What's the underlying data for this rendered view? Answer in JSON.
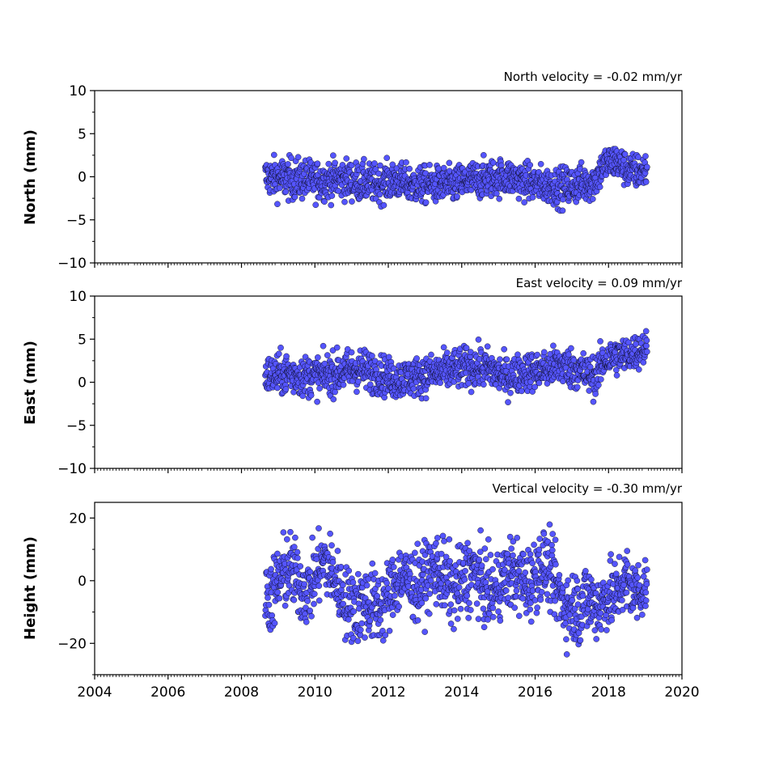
{
  "chart_data": [
    {
      "type": "scatter",
      "component": "north",
      "ylabel": "North (mm)",
      "velocity_label": "North velocity = -0.02 mm/yr",
      "xlim": [
        2004,
        2020
      ],
      "ylim": [
        -10,
        10
      ],
      "yticks": [
        10,
        5,
        0,
        -5,
        -10
      ],
      "yticks_labels": [
        "10",
        "5",
        "0",
        "−5",
        "−10"
      ],
      "x_start": 2008.65,
      "x_end": 2019.05,
      "series": [
        {
          "x": [
            2008.7,
            2009.2,
            2009.7,
            2010.2,
            2010.7,
            2011.2,
            2011.7,
            2012.2,
            2012.7,
            2013.2,
            2013.7,
            2014.2,
            2014.7,
            2015.2,
            2015.7,
            2016.2,
            2016.7,
            2017.2,
            2017.6,
            2017.9,
            2018.2,
            2018.5,
            2018.8,
            2019.0
          ],
          "y": [
            0.0,
            -0.2,
            -0.3,
            -0.5,
            -0.2,
            -0.6,
            -0.8,
            -0.4,
            -1.0,
            -0.9,
            -1.0,
            -0.5,
            -0.2,
            0.0,
            -0.5,
            -0.9,
            -1.2,
            -0.8,
            -0.6,
            1.5,
            1.8,
            0.8,
            0.6,
            0.8
          ],
          "spread": [
            2.2,
            2.4,
            2.3,
            2.2,
            2.3,
            2.2,
            2.2,
            2.1,
            2.1,
            2.1,
            2.1,
            2.2,
            2.2,
            2.1,
            2.1,
            2.1,
            2.2,
            2.2,
            2.1,
            2.0,
            2.0,
            2.0,
            2.0,
            2.0
          ]
        }
      ]
    },
    {
      "type": "scatter",
      "component": "east",
      "ylabel": "East (mm)",
      "velocity_label": "East velocity = 0.09 mm/yr",
      "xlim": [
        2004,
        2020
      ],
      "ylim": [
        -10,
        10
      ],
      "yticks": [
        10,
        5,
        0,
        -5,
        -10
      ],
      "yticks_labels": [
        "10",
        "5",
        "0",
        "−5",
        "−10"
      ],
      "x_start": 2008.65,
      "x_end": 2019.05,
      "series": [
        {
          "x": [
            2008.7,
            2009.2,
            2009.7,
            2010.2,
            2010.7,
            2011.2,
            2011.7,
            2012.2,
            2012.7,
            2013.2,
            2013.7,
            2014.2,
            2014.7,
            2015.2,
            2015.7,
            2016.2,
            2016.7,
            2017.2,
            2017.6,
            2017.9,
            2018.2,
            2018.5,
            2018.8,
            2019.0
          ],
          "y": [
            0.8,
            1.0,
            0.7,
            0.8,
            1.2,
            1.6,
            1.0,
            0.3,
            0.6,
            1.0,
            1.4,
            1.8,
            1.6,
            0.6,
            1.2,
            1.4,
            2.0,
            1.4,
            0.6,
            2.6,
            3.0,
            3.2,
            3.6,
            4.0
          ],
          "spread": [
            2.2,
            2.4,
            2.3,
            2.3,
            2.4,
            2.4,
            2.3,
            2.2,
            2.2,
            2.2,
            2.3,
            2.3,
            2.3,
            2.2,
            2.2,
            2.2,
            2.3,
            2.3,
            2.3,
            2.1,
            2.1,
            2.0,
            2.0,
            1.9
          ]
        }
      ]
    },
    {
      "type": "scatter",
      "component": "height",
      "ylabel": "Height (mm)",
      "velocity_label": "Vertical velocity = -0.30 mm/yr",
      "xlim": [
        2004,
        2020
      ],
      "ylim": [
        -30,
        25
      ],
      "yticks": [
        20,
        0,
        -20
      ],
      "yticks_labels": [
        "20",
        "0",
        "−20"
      ],
      "x_start": 2008.65,
      "x_end": 2019.05,
      "seasonal_amplitude_mm": 5,
      "series": [
        {
          "x": [
            2008.7,
            2009.2,
            2009.7,
            2010.2,
            2010.7,
            2011.2,
            2011.7,
            2012.2,
            2012.7,
            2013.2,
            2013.7,
            2014.2,
            2014.7,
            2015.2,
            2015.7,
            2016.2,
            2016.7,
            2017.2,
            2017.6,
            2017.9,
            2018.2,
            2018.5,
            2018.8,
            2019.0
          ],
          "y": [
            1.0,
            -2.0,
            2.0,
            0.5,
            2.0,
            -14.0,
            -3.0,
            -6.0,
            4.0,
            -2.0,
            3.0,
            -3.0,
            2.0,
            -4.0,
            5.0,
            0.0,
            0.0,
            -14.0,
            -4.0,
            -2.0,
            -10.0,
            0.0,
            2.0,
            -2.0
          ],
          "spread": [
            12.0,
            12.0,
            11.0,
            11.0,
            11.0,
            12.0,
            12.0,
            11.0,
            11.0,
            11.0,
            12.0,
            12.0,
            11.0,
            11.0,
            12.0,
            11.0,
            11.0,
            12.0,
            11.0,
            11.0,
            11.0,
            11.0,
            10.0,
            9.0
          ]
        }
      ]
    }
  ],
  "x_axis": {
    "ticks": [
      2004,
      2006,
      2008,
      2010,
      2012,
      2014,
      2016,
      2018,
      2020
    ],
    "tick_labels": [
      "2004",
      "2006",
      "2008",
      "2010",
      "2012",
      "2014",
      "2016",
      "2018",
      "2020"
    ],
    "minor_ticks_per_year": 12
  },
  "colors": {
    "marker_fill": "#5555ff",
    "marker_edge": "#000000",
    "axis": "#000000",
    "background": "#ffffff"
  }
}
